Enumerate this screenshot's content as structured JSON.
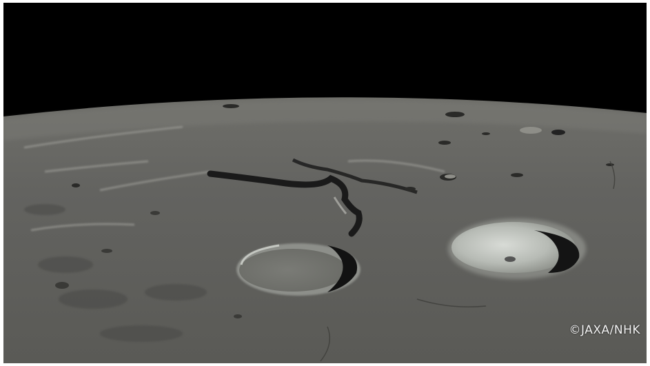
{
  "image": {
    "subject": "lunar-surface",
    "credit": "©JAXA/NHK"
  },
  "colors": {
    "space": "#000000",
    "surface_base": "#5c5c57",
    "surface_light": "#8a8a84",
    "crater_highlight": "#c9cdc9",
    "shadow": "#151515",
    "frame": "#ffffff"
  }
}
